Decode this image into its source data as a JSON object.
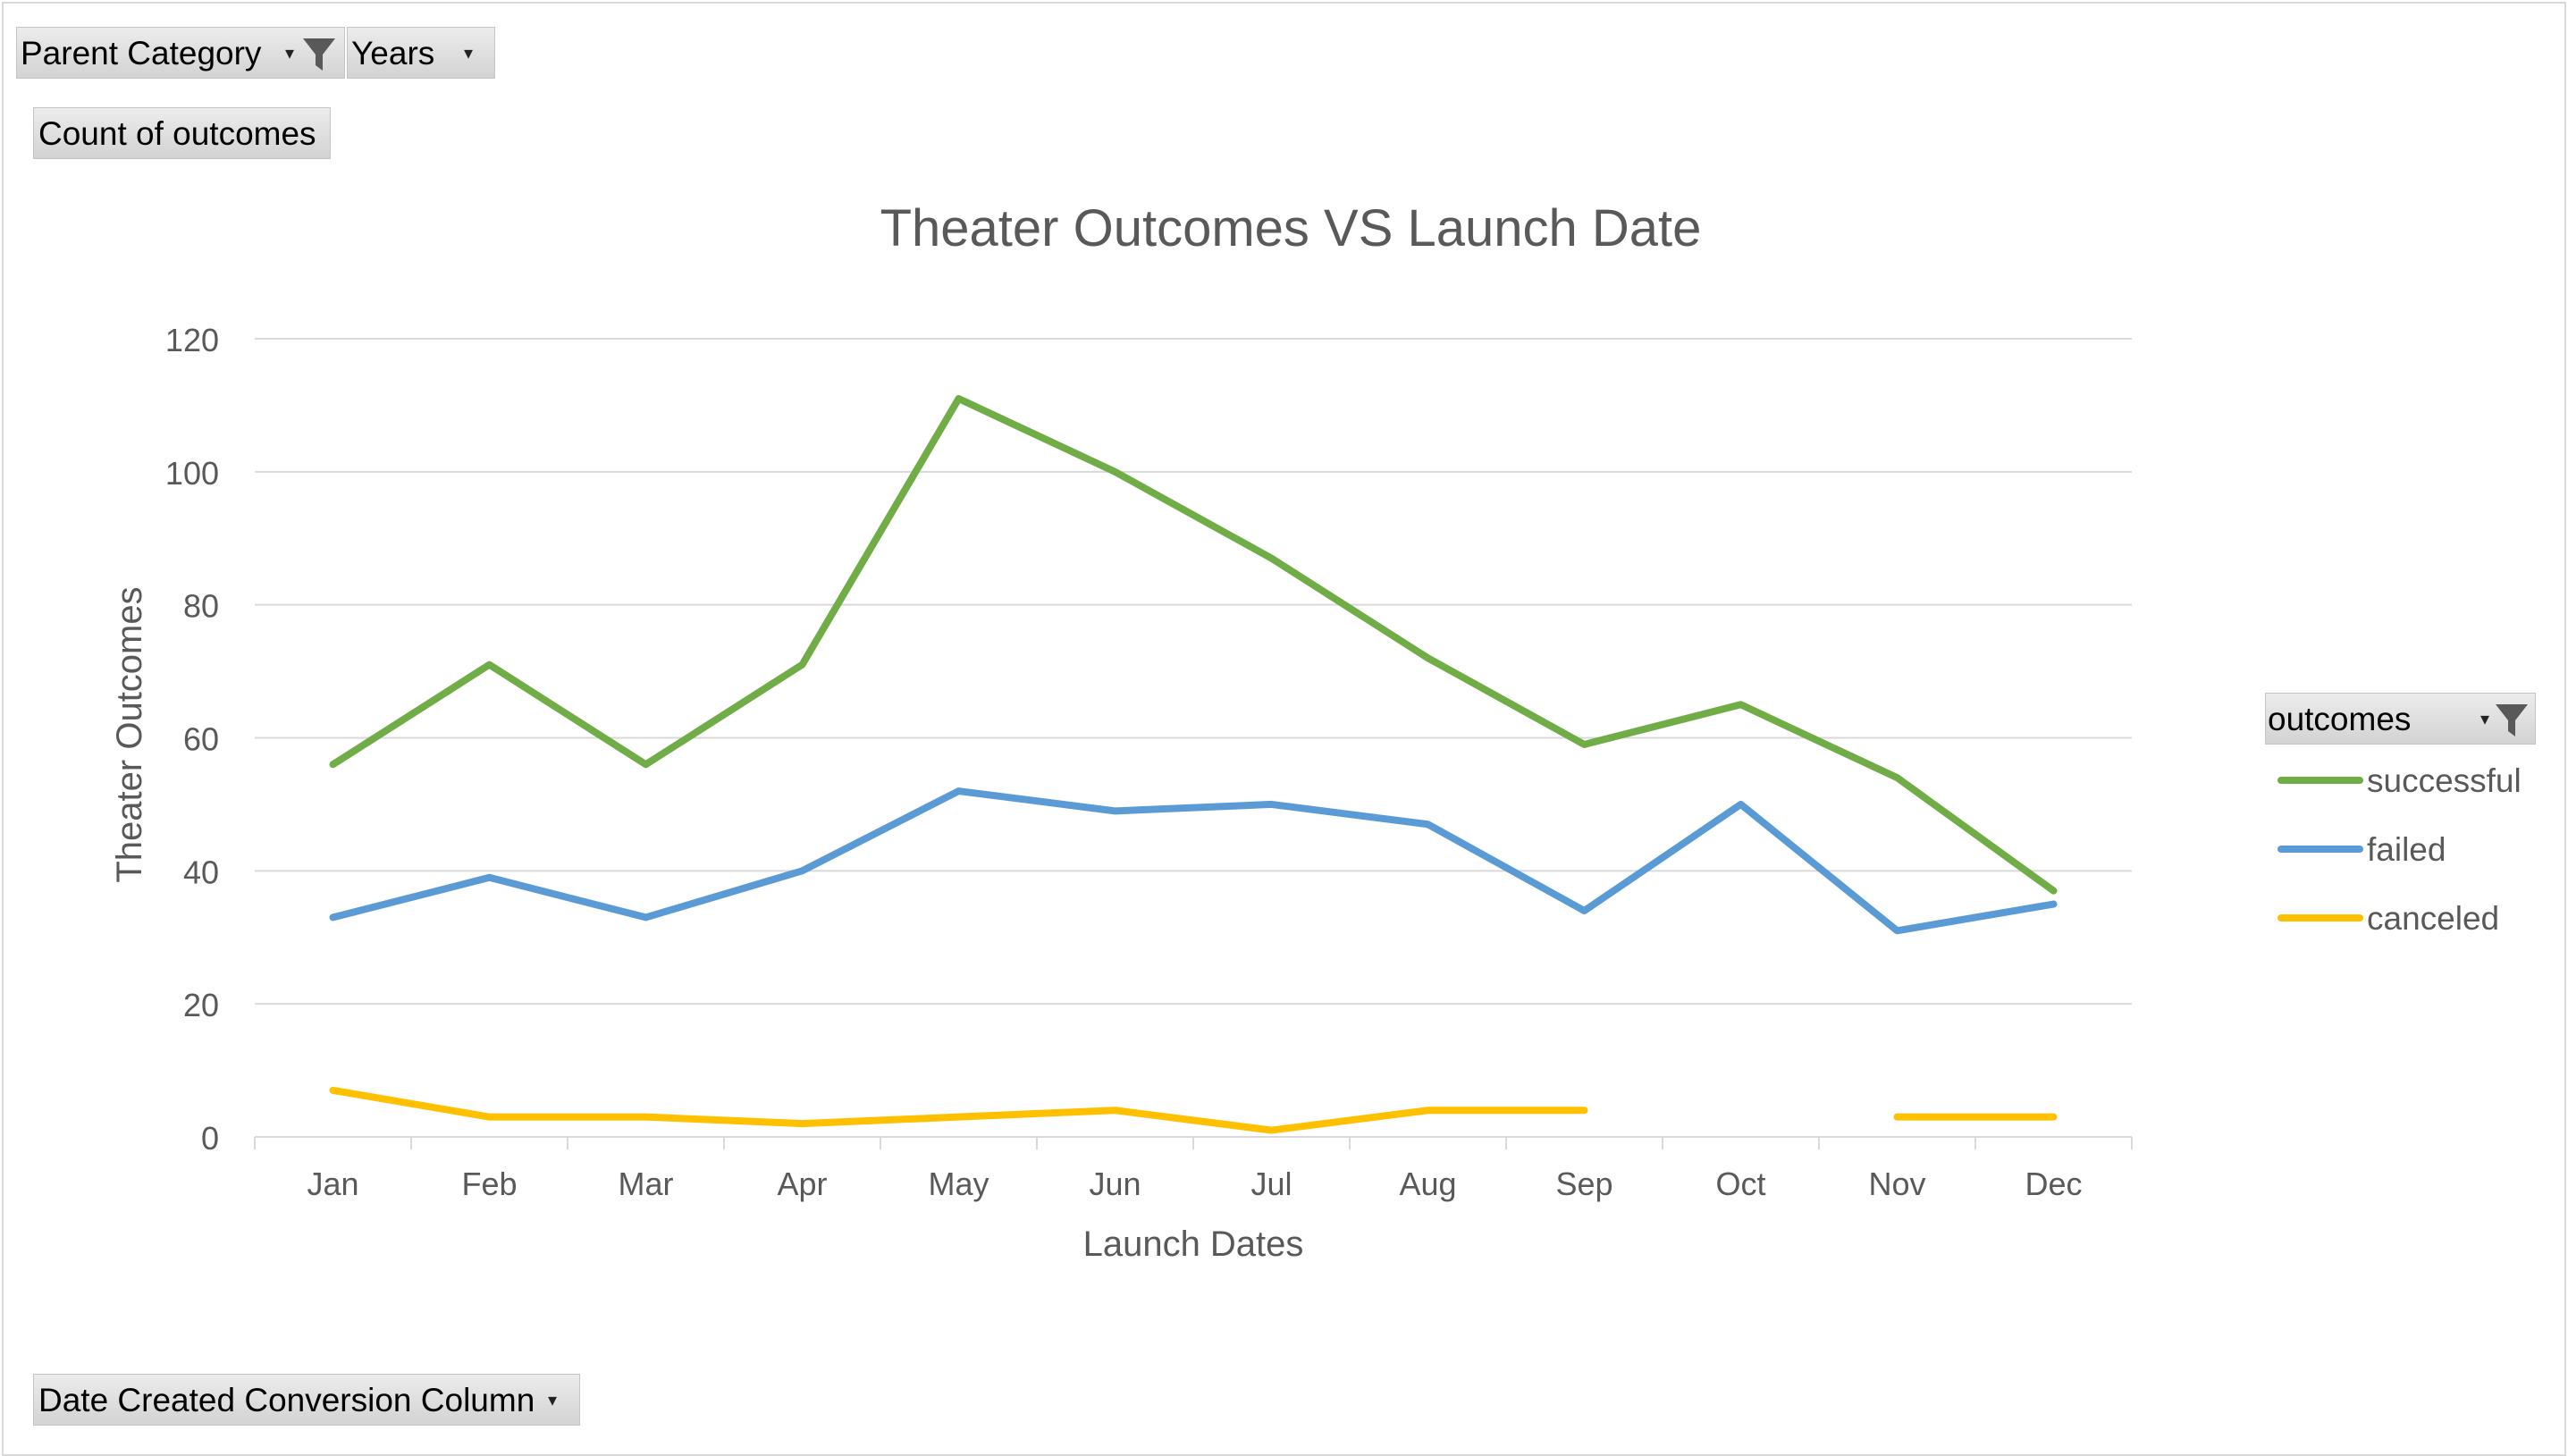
{
  "filters": {
    "parent_category": "Parent Category",
    "years": "Years",
    "values_field": "Count of outcomes",
    "axis_field": "Date Created Conversion Column",
    "legend_field": "outcomes"
  },
  "icons": {
    "filter": "funnel-filter-icon",
    "dropdown": "dropdown-arrow-icon"
  },
  "colors": {
    "successful": "#70ad47",
    "failed": "#5b9bd5",
    "canceled": "#ffc000",
    "grid": "#d9d9d9",
    "text": "#595959"
  },
  "chart_data": {
    "type": "line",
    "title": "Theater Outcomes VS Launch Date",
    "xlabel": "Launch Dates",
    "ylabel": "Theater Outcomes",
    "ylim": [
      0,
      120
    ],
    "yticks": [
      0,
      20,
      40,
      60,
      80,
      100,
      120
    ],
    "grid": true,
    "legend_position": "right",
    "categories": [
      "Jan",
      "Feb",
      "Mar",
      "Apr",
      "May",
      "Jun",
      "Jul",
      "Aug",
      "Sep",
      "Oct",
      "Nov",
      "Dec"
    ],
    "series": [
      {
        "name": "successful",
        "color": "#70ad47",
        "values": [
          56,
          71,
          56,
          71,
          111,
          100,
          87,
          72,
          59,
          65,
          54,
          37
        ]
      },
      {
        "name": "failed",
        "color": "#5b9bd5",
        "values": [
          33,
          39,
          33,
          40,
          52,
          49,
          50,
          47,
          34,
          50,
          31,
          35
        ]
      },
      {
        "name": "canceled",
        "color": "#ffc000",
        "values": [
          7,
          3,
          3,
          2,
          3,
          4,
          1,
          4,
          4,
          null,
          3,
          3
        ]
      }
    ]
  }
}
